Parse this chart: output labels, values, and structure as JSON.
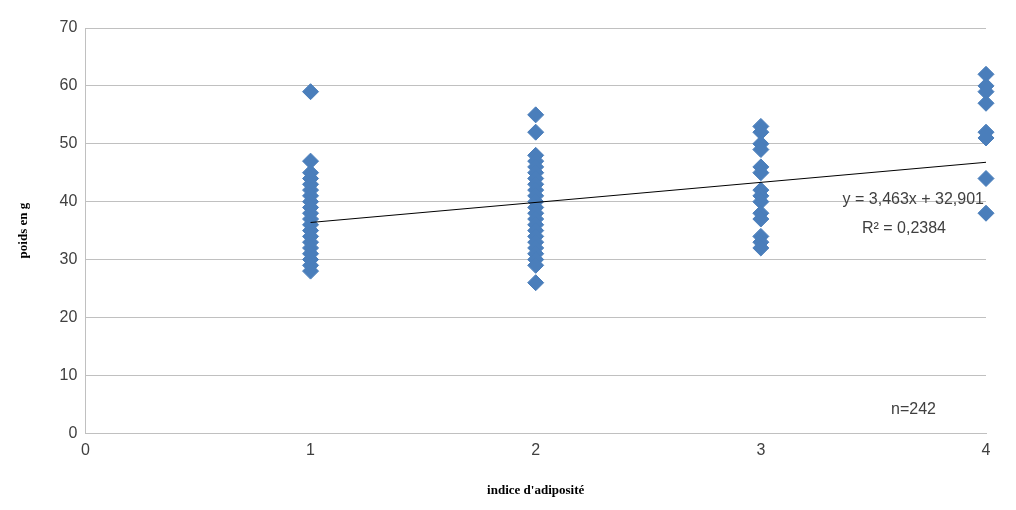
{
  "chart_data": {
    "type": "scatter",
    "xlabel": "indice d'adiposité",
    "ylabel": "poids en g",
    "series": [
      {
        "marker": "diamond",
        "color": "#4a7ebb",
        "x": [
          1,
          1,
          1,
          1,
          1,
          1,
          1,
          1,
          1,
          1,
          1,
          1,
          1,
          1,
          1,
          1,
          1,
          1,
          1,
          1,
          2,
          2,
          2,
          2,
          2,
          2,
          2,
          2,
          2,
          2,
          2,
          2,
          2,
          2,
          2,
          2,
          2,
          2,
          2,
          2,
          2,
          2,
          2,
          3,
          3,
          3,
          3,
          3,
          3,
          3,
          3,
          3,
          3,
          3,
          3,
          3,
          3,
          4,
          4,
          4,
          4,
          4,
          4,
          4,
          4
        ],
        "values": [
          59,
          47,
          45,
          44,
          43,
          42,
          41,
          40,
          39,
          38,
          37,
          36,
          35,
          34,
          33,
          32,
          31,
          30,
          29,
          28,
          55,
          52,
          48,
          47,
          46,
          45,
          44,
          43,
          42,
          41,
          40,
          39,
          38,
          37,
          36,
          35,
          34,
          33,
          32,
          31,
          30,
          29,
          26,
          53,
          52,
          50,
          49,
          46,
          45,
          42,
          41,
          40,
          38,
          37,
          34,
          33,
          32,
          62,
          60,
          59,
          57,
          52,
          51,
          44,
          38
        ]
      },
      {
        "type": "line",
        "marker": "none",
        "color": "#000000",
        "x": [
          1,
          4
        ],
        "values": [
          36.4,
          46.8
        ]
      }
    ],
    "xlim": [
      0,
      4
    ],
    "xticks": [
      0,
      1,
      2,
      3,
      4
    ],
    "ylim": [
      0,
      70
    ],
    "yticks": [
      0,
      10,
      20,
      30,
      40,
      50,
      60,
      70
    ],
    "grid": "y",
    "legend": false,
    "annotations": [
      "y = 3,463x + 32,901",
      "R² = 0,2384",
      "n=242"
    ]
  }
}
